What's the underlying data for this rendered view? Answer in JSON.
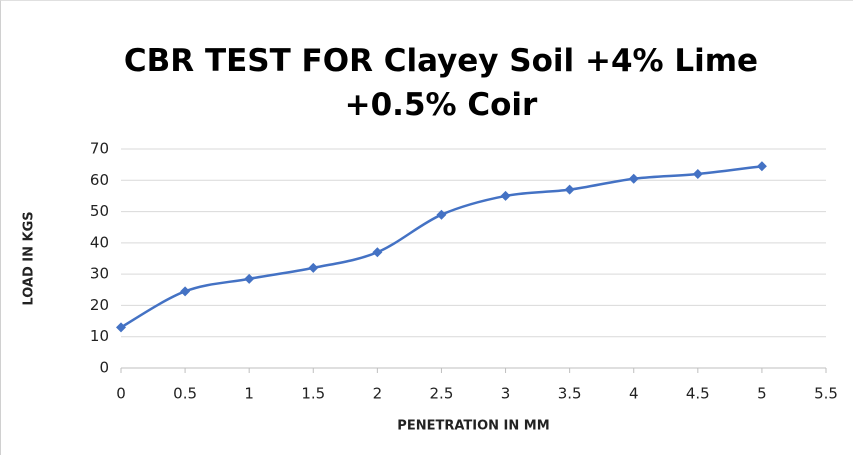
{
  "chart_data": {
    "type": "line",
    "title": "CBR TEST FOR Clayey Soil +4% Lime +0.5% Coir",
    "x_label": "PENETRATION IN MM",
    "y_label": "LOAD IN KGS",
    "x": [
      0,
      0.5,
      1,
      1.5,
      2,
      2.5,
      3,
      3.5,
      4,
      4.5,
      5
    ],
    "values": [
      13,
      24.5,
      28.5,
      32,
      37,
      49,
      55,
      57,
      60.5,
      62,
      64.5
    ],
    "color": "#4472c4",
    "xlim": [
      0,
      5.5
    ],
    "xticks": [
      0,
      0.5,
      1,
      1.5,
      2,
      2.5,
      3,
      3.5,
      4,
      4.5,
      5,
      5.5
    ],
    "ylim": [
      0,
      70
    ],
    "yticks": [
      0,
      10,
      20,
      30,
      40,
      50,
      60,
      70
    ],
    "grid": true,
    "smooth": true,
    "marker": "diamond"
  }
}
